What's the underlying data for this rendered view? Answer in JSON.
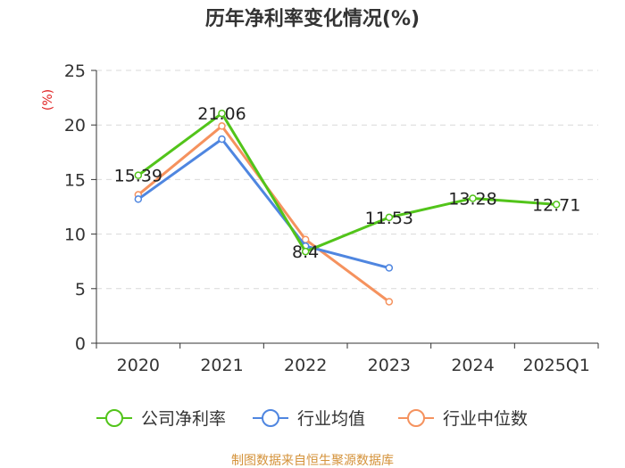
{
  "chart_data": {
    "type": "line",
    "title": "历年净利率变化情况(%)",
    "ylabel": "(%)",
    "categories": [
      "2020",
      "2021",
      "2022",
      "2023",
      "2024",
      "2025Q1"
    ],
    "ylim": [
      0,
      25
    ],
    "yticks": [
      0,
      5,
      10,
      15,
      20,
      25
    ],
    "grid": true,
    "legend_position": "bottom",
    "series": [
      {
        "name": "公司净利率",
        "color": "#52c41a",
        "values": [
          15.39,
          21.06,
          8.4,
          11.53,
          13.28,
          12.71
        ],
        "labels": [
          "15.39",
          "21.06",
          "8.4",
          "11.53",
          "13.28",
          "12.71"
        ]
      },
      {
        "name": "行业均值",
        "color": "#4f86e0",
        "values": [
          13.2,
          18.7,
          8.9,
          6.9,
          null,
          null
        ],
        "labels": []
      },
      {
        "name": "行业中位数",
        "color": "#f5925e",
        "values": [
          13.6,
          19.9,
          9.5,
          3.8,
          null,
          null
        ],
        "labels": []
      }
    ]
  },
  "source": "制图数据来自恒生聚源数据库"
}
